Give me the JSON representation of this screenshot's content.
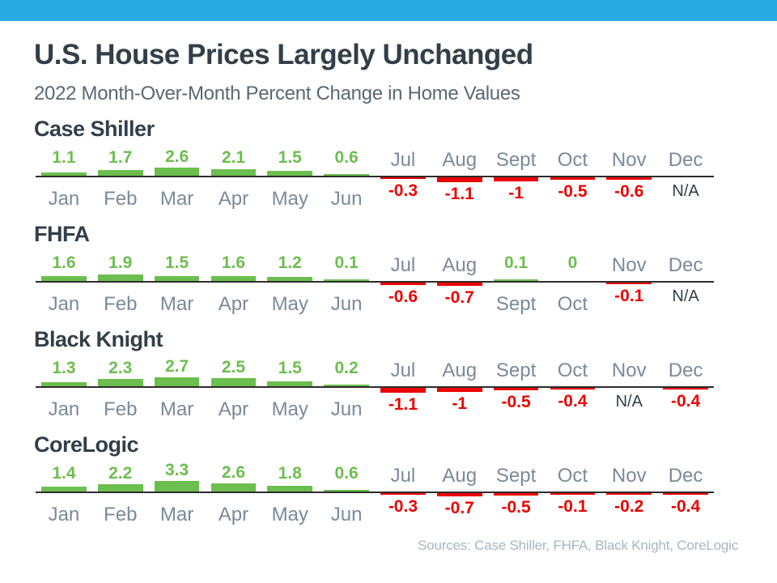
{
  "header": {
    "title": "U.S. House Prices Largely Unchanged",
    "subtitle": "2022 Month-Over-Month Percent Change in Home Values"
  },
  "footer": {
    "sources": "Sources: Case Shiller, FHFA, Black Knight, CoreLogic"
  },
  "colors": {
    "accent_blue": "#29ABE2",
    "positive_green": "#6CBE4E",
    "negative_red": "#EC0000",
    "month_gray": "#7B8A99",
    "dark_text": "#333F48",
    "subtitle_gray": "#5A6872",
    "sources_gray": "#A9B6BF",
    "baseline_dark": "#2D2D2D"
  },
  "na_text": "N/A",
  "chart_data": [
    {
      "type": "bar",
      "title": "Case Shiller",
      "categories": [
        "Jan",
        "Feb",
        "Mar",
        "Apr",
        "May",
        "Jun",
        "Jul",
        "Aug",
        "Sept",
        "Oct",
        "Nov",
        "Dec"
      ],
      "values": [
        1.1,
        1.7,
        2.6,
        2.1,
        1.5,
        0.6,
        -0.3,
        -1.1,
        -1,
        -0.5,
        -0.6,
        null
      ],
      "display": [
        "1.1",
        "1.7",
        "2.6",
        "2.1",
        "1.5",
        "0.6",
        "-0.3",
        "-1.1",
        "-1",
        "-0.5",
        "-0.6",
        "N/A"
      ],
      "legend": "none",
      "grid": "off",
      "ylim": [
        -1.5,
        3.5
      ]
    },
    {
      "type": "bar",
      "title": "FHFA",
      "categories": [
        "Jan",
        "Feb",
        "Mar",
        "Apr",
        "May",
        "Jun",
        "Jul",
        "Aug",
        "Sept",
        "Oct",
        "Nov",
        "Dec"
      ],
      "values": [
        1.6,
        1.9,
        1.5,
        1.6,
        1.2,
        0.1,
        -0.6,
        -0.7,
        0.1,
        0,
        -0.1,
        null
      ],
      "display": [
        "1.6",
        "1.9",
        "1.5",
        "1.6",
        "1.2",
        "0.1",
        "-0.6",
        "-0.7",
        "0.1",
        "0",
        "-0.1",
        "N/A"
      ],
      "legend": "none",
      "grid": "off",
      "ylim": [
        -1.5,
        3.5
      ]
    },
    {
      "type": "bar",
      "title": "Black Knight",
      "categories": [
        "Jan",
        "Feb",
        "Mar",
        "Apr",
        "May",
        "Jun",
        "Jul",
        "Aug",
        "Sept",
        "Oct",
        "Nov",
        "Dec"
      ],
      "values": [
        1.3,
        2.3,
        2.7,
        2.5,
        1.5,
        0.2,
        -1.1,
        -1,
        -0.5,
        -0.4,
        null,
        -0.4
      ],
      "display": [
        "1.3",
        "2.3",
        "2.7",
        "2.5",
        "1.5",
        "0.2",
        "-1.1",
        "-1",
        "-0.5",
        "-0.4",
        "N/A",
        "-0.4"
      ],
      "legend": "none",
      "grid": "off",
      "ylim": [
        -1.5,
        3.5
      ]
    },
    {
      "type": "bar",
      "title": "CoreLogic",
      "categories": [
        "Jan",
        "Feb",
        "Mar",
        "Apr",
        "May",
        "Jun",
        "Jul",
        "Aug",
        "Sept",
        "Oct",
        "Nov",
        "Dec"
      ],
      "values": [
        1.4,
        2.2,
        3.3,
        2.6,
        1.8,
        0.6,
        -0.3,
        -0.7,
        -0.5,
        -0.1,
        -0.2,
        -0.4
      ],
      "display": [
        "1.4",
        "2.2",
        "3.3",
        "2.6",
        "1.8",
        "0.6",
        "-0.3",
        "-0.7",
        "-0.5",
        "-0.1",
        "-0.2",
        "-0.4"
      ],
      "legend": "none",
      "grid": "off",
      "ylim": [
        -1.5,
        3.5
      ]
    }
  ]
}
